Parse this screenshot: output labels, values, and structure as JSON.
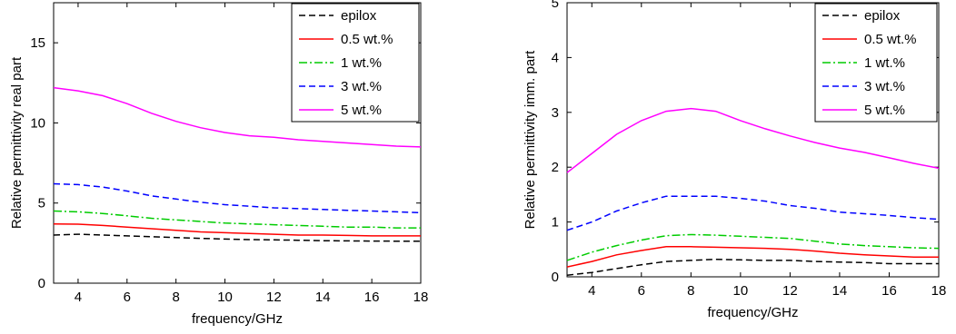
{
  "chart_data": [
    {
      "type": "line",
      "xlabel": "frequency/GHz",
      "ylabel": "Relative permittivity real part",
      "xlim": [
        3,
        18
      ],
      "ylim": [
        0,
        17.5
      ],
      "xticks": [
        4,
        6,
        8,
        10,
        12,
        14,
        16,
        18
      ],
      "yticks": [
        0,
        5,
        10,
        15
      ],
      "legend_position": "top-right",
      "grid": false,
      "series": [
        {
          "name": "epilox",
          "color": "#000000",
          "dash": "dashed",
          "x": [
            3,
            4,
            5,
            6,
            7,
            8,
            9,
            10,
            11,
            12,
            13,
            14,
            15,
            16,
            17,
            18
          ],
          "y": [
            3.0,
            3.05,
            3.0,
            2.95,
            2.9,
            2.85,
            2.8,
            2.75,
            2.72,
            2.7,
            2.68,
            2.65,
            2.64,
            2.63,
            2.62,
            2.62
          ]
        },
        {
          "name": "0.5 wt.%",
          "color": "#ff0000",
          "dash": "solid",
          "x": [
            3,
            4,
            5,
            6,
            7,
            8,
            9,
            10,
            11,
            12,
            13,
            14,
            15,
            16,
            17,
            18
          ],
          "y": [
            3.7,
            3.68,
            3.6,
            3.5,
            3.4,
            3.3,
            3.2,
            3.15,
            3.1,
            3.05,
            3.0,
            3.0,
            2.98,
            2.95,
            2.95,
            2.95
          ]
        },
        {
          "name": "1 wt.%",
          "color": "#00cc00",
          "dash": "dashdot",
          "x": [
            3,
            4,
            5,
            6,
            7,
            8,
            9,
            10,
            11,
            12,
            13,
            14,
            15,
            16,
            17,
            18
          ],
          "y": [
            4.5,
            4.45,
            4.35,
            4.2,
            4.05,
            3.95,
            3.85,
            3.75,
            3.7,
            3.65,
            3.6,
            3.55,
            3.5,
            3.5,
            3.45,
            3.45
          ]
        },
        {
          "name": "3 wt.%",
          "color": "#0000ff",
          "dash": "dashed",
          "x": [
            3,
            4,
            5,
            6,
            7,
            8,
            9,
            10,
            11,
            12,
            13,
            14,
            15,
            16,
            17,
            18
          ],
          "y": [
            6.2,
            6.15,
            6.0,
            5.75,
            5.45,
            5.25,
            5.05,
            4.9,
            4.8,
            4.7,
            4.65,
            4.6,
            4.55,
            4.5,
            4.45,
            4.4
          ]
        },
        {
          "name": "5 wt.%",
          "color": "#ff00ff",
          "dash": "solid",
          "x": [
            3,
            4,
            5,
            6,
            7,
            8,
            9,
            10,
            11,
            12,
            13,
            14,
            15,
            16,
            17,
            18
          ],
          "y": [
            12.2,
            12.0,
            11.7,
            11.2,
            10.6,
            10.1,
            9.7,
            9.4,
            9.2,
            9.1,
            8.95,
            8.85,
            8.75,
            8.65,
            8.55,
            8.5
          ]
        }
      ]
    },
    {
      "type": "line",
      "xlabel": "frequency/GHz",
      "ylabel": "Relative permittivity imm. part",
      "xlim": [
        3,
        18
      ],
      "ylim": [
        0,
        5
      ],
      "xticks": [
        4,
        6,
        8,
        10,
        12,
        14,
        16,
        18
      ],
      "yticks": [
        0,
        1,
        2,
        3,
        4,
        5
      ],
      "legend_position": "top-right",
      "grid": false,
      "series": [
        {
          "name": "epilox",
          "color": "#000000",
          "dash": "dashed",
          "x": [
            3,
            4,
            5,
            6,
            7,
            8,
            9,
            10,
            11,
            12,
            13,
            14,
            15,
            16,
            17,
            18
          ],
          "y": [
            0.03,
            0.08,
            0.15,
            0.22,
            0.28,
            0.3,
            0.32,
            0.31,
            0.3,
            0.3,
            0.28,
            0.27,
            0.26,
            0.24,
            0.24,
            0.24
          ]
        },
        {
          "name": "0.5 wt.%",
          "color": "#ff0000",
          "dash": "solid",
          "x": [
            3,
            4,
            5,
            6,
            7,
            8,
            9,
            10,
            11,
            12,
            13,
            14,
            15,
            16,
            17,
            18
          ],
          "y": [
            0.18,
            0.28,
            0.4,
            0.48,
            0.55,
            0.55,
            0.54,
            0.53,
            0.52,
            0.5,
            0.47,
            0.43,
            0.4,
            0.38,
            0.36,
            0.36
          ]
        },
        {
          "name": "1 wt.%",
          "color": "#00cc00",
          "dash": "dashdot",
          "x": [
            3,
            4,
            5,
            6,
            7,
            8,
            9,
            10,
            11,
            12,
            13,
            14,
            15,
            16,
            17,
            18
          ],
          "y": [
            0.3,
            0.45,
            0.57,
            0.67,
            0.75,
            0.77,
            0.76,
            0.74,
            0.72,
            0.7,
            0.65,
            0.6,
            0.57,
            0.55,
            0.53,
            0.52
          ]
        },
        {
          "name": "3 wt.%",
          "color": "#0000ff",
          "dash": "dashed",
          "x": [
            3,
            4,
            5,
            6,
            7,
            8,
            9,
            10,
            11,
            12,
            13,
            14,
            15,
            16,
            17,
            18
          ],
          "y": [
            0.85,
            1.0,
            1.2,
            1.35,
            1.47,
            1.47,
            1.47,
            1.43,
            1.38,
            1.3,
            1.25,
            1.18,
            1.15,
            1.12,
            1.08,
            1.05
          ]
        },
        {
          "name": "5 wt.%",
          "color": "#ff00ff",
          "dash": "solid",
          "x": [
            3,
            4,
            5,
            6,
            7,
            8,
            9,
            10,
            11,
            12,
            13,
            14,
            15,
            16,
            17,
            18
          ],
          "y": [
            1.9,
            2.25,
            2.6,
            2.85,
            3.02,
            3.07,
            3.02,
            2.85,
            2.7,
            2.57,
            2.45,
            2.35,
            2.27,
            2.17,
            2.07,
            1.98
          ]
        }
      ]
    }
  ]
}
